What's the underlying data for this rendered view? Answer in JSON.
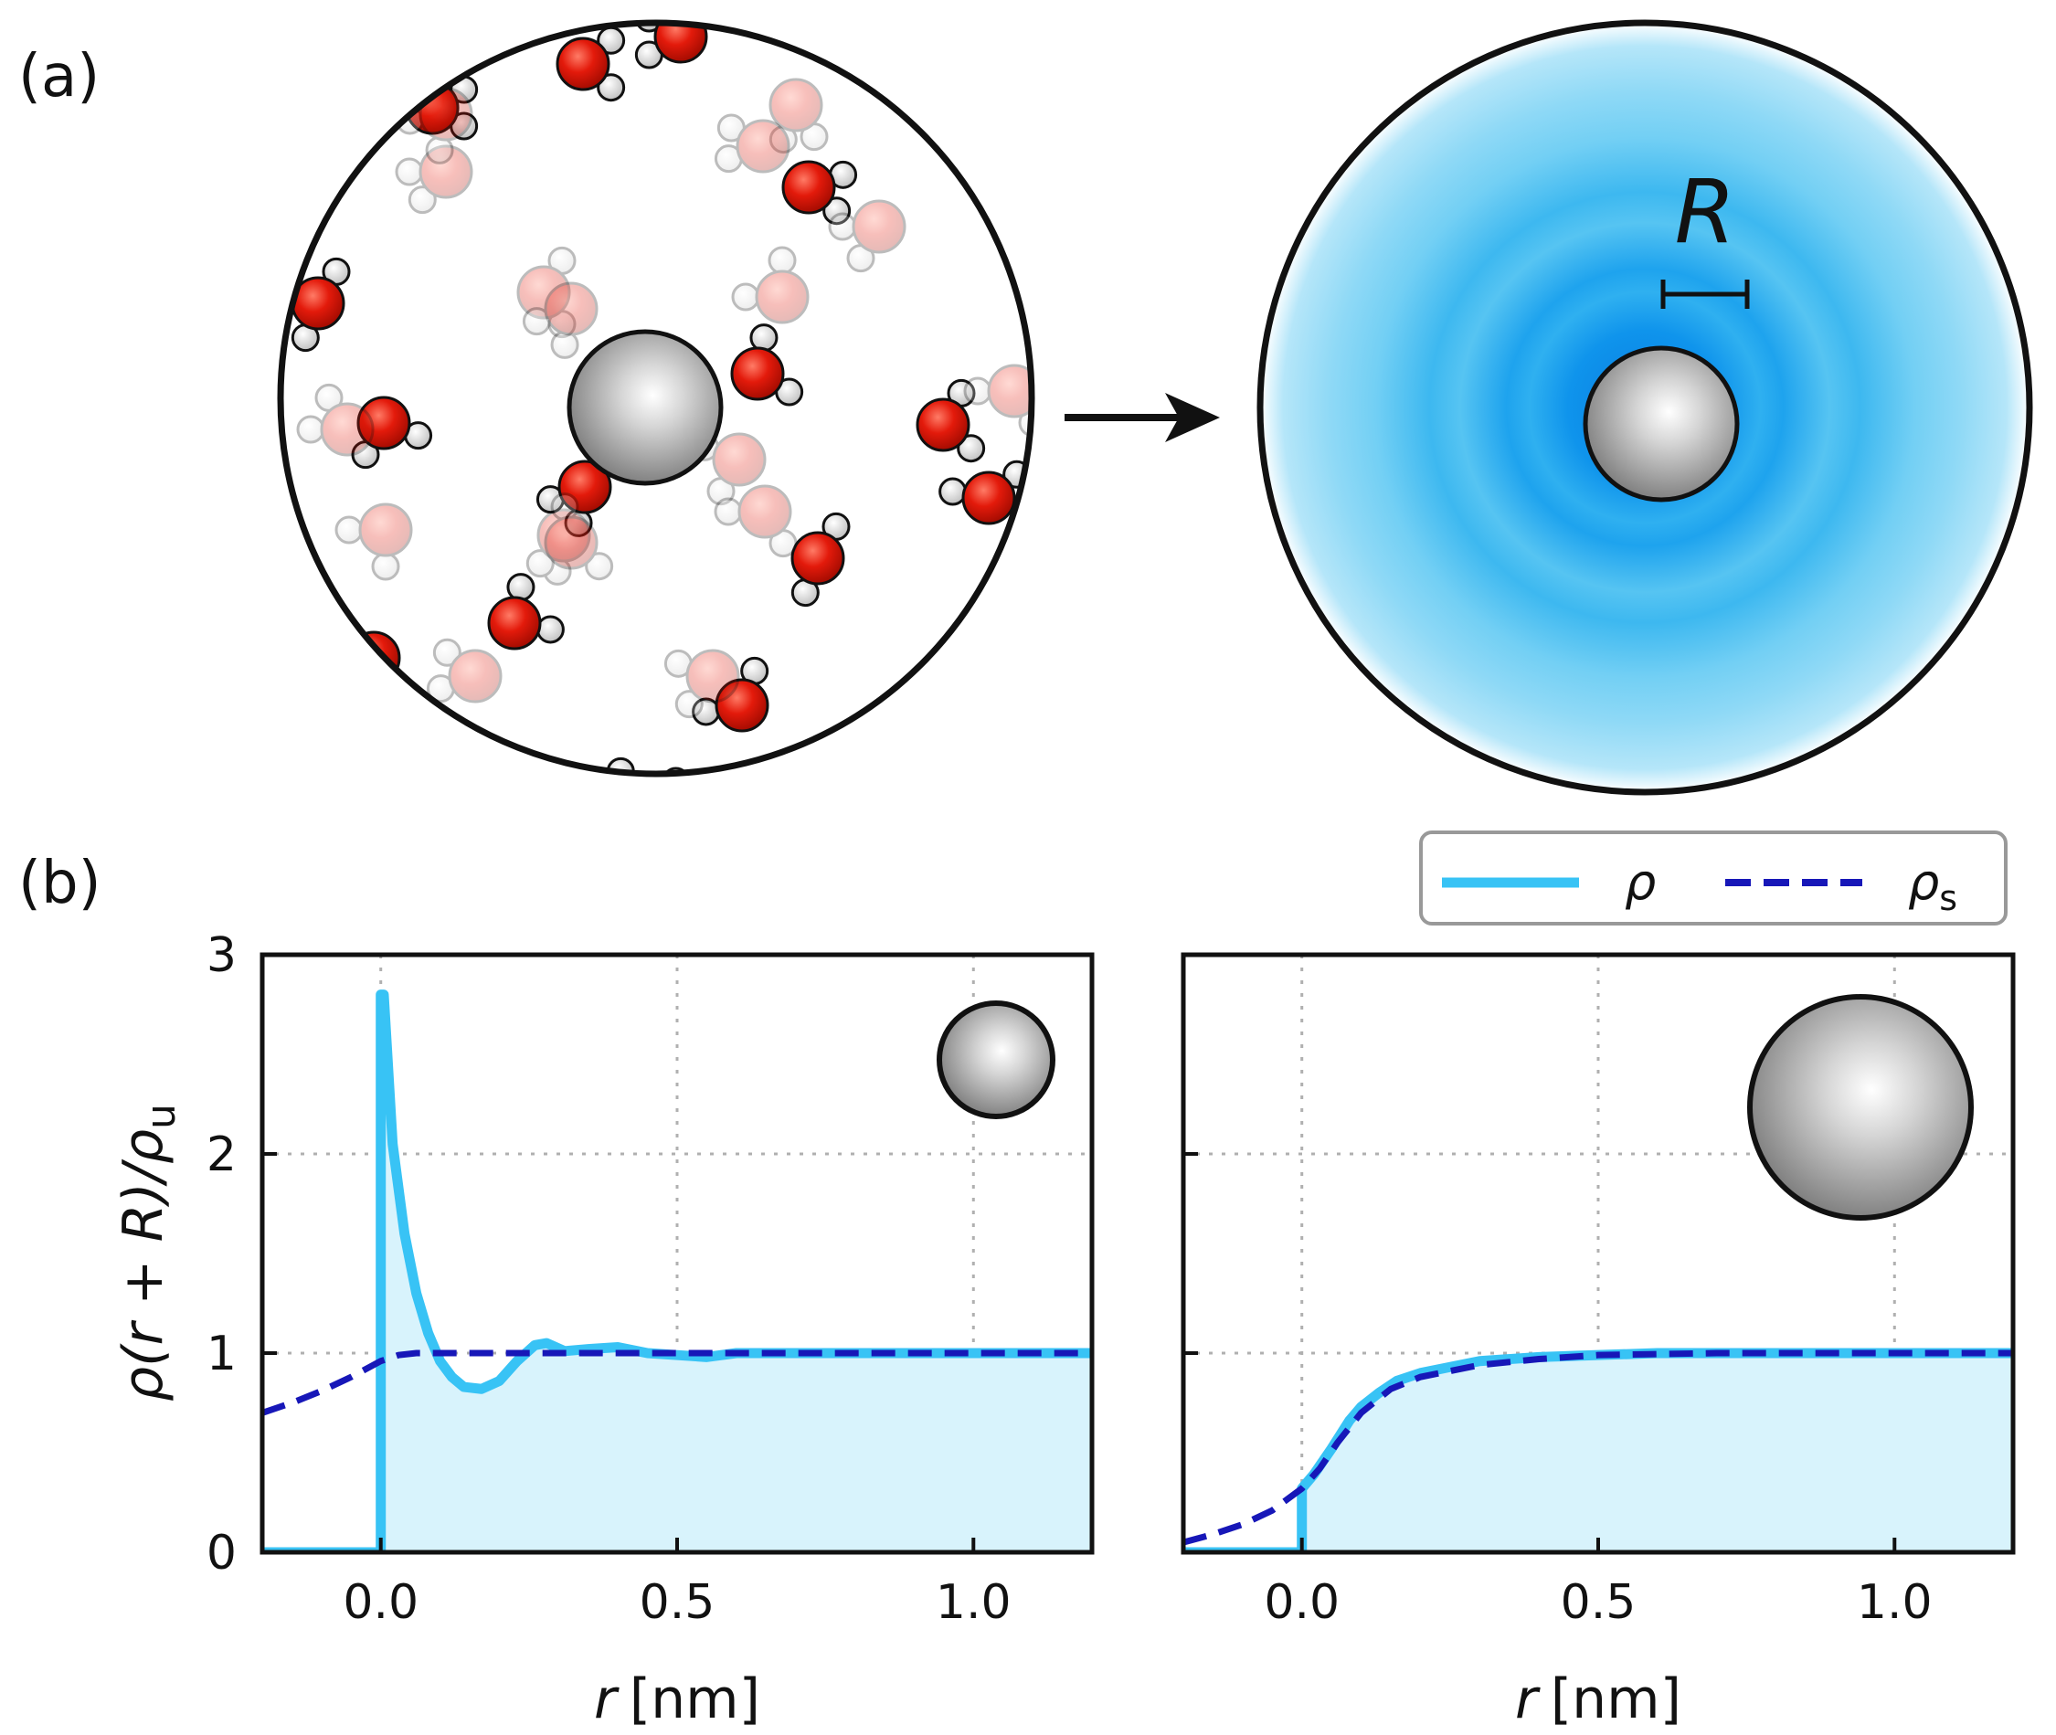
{
  "panel_labels": {
    "a": "(a)",
    "b": "(b)"
  },
  "illustration": {
    "radius_label": "R",
    "colors": {
      "oxygen": "#e31a0b",
      "hydrogen": "#ffffff",
      "solute": "#9a9a9a",
      "density_blue": "#1aa6f0"
    }
  },
  "legend": {
    "entries": [
      {
        "label": "ρ",
        "color": "#38c3f5",
        "style": "solid"
      },
      {
        "label": "ρ",
        "sub": "s",
        "color": "#1717b8",
        "style": "dashed"
      }
    ]
  },
  "axes_text": {
    "ylabel_html": "ρ(r + R)/ρ",
    "ylabel_sub": "u",
    "xlabel_var": "r",
    "xlabel_unit": "[nm]"
  },
  "colors": {
    "rho": "#38c3f5",
    "rho_s": "#1717b8",
    "fill": "#d8f3fc",
    "grid": "#b0b0b0"
  },
  "chart_data": [
    {
      "type": "line",
      "panel": "left (small solute)",
      "xlabel": "r [nm]",
      "ylabel": "ρ(r + R)/ρu",
      "xlim": [
        -0.2,
        1.2
      ],
      "ylim": [
        0,
        3
      ],
      "xticks": [
        0.0,
        0.5,
        1.0
      ],
      "xtick_labels": [
        "0.0",
        "0.5",
        "1.0"
      ],
      "yticks": [
        0,
        1,
        2,
        3
      ],
      "ytick_labels": [
        "0",
        "1",
        "2",
        "3"
      ],
      "grid": true,
      "series": [
        {
          "name": "ρ",
          "x": [
            -0.2,
            0.0,
            0.0,
            0.005,
            0.02,
            0.04,
            0.06,
            0.08,
            0.1,
            0.12,
            0.14,
            0.17,
            0.2,
            0.23,
            0.26,
            0.28,
            0.31,
            0.35,
            0.4,
            0.45,
            0.5,
            0.55,
            0.6,
            0.7,
            0.8,
            0.9,
            1.0,
            1.1,
            1.2
          ],
          "y": [
            0.0,
            0.0,
            2.8,
            2.8,
            2.05,
            1.6,
            1.3,
            1.1,
            0.96,
            0.88,
            0.83,
            0.82,
            0.86,
            0.96,
            1.04,
            1.05,
            1.01,
            1.02,
            1.03,
            1.0,
            0.99,
            0.98,
            1.0,
            1.0,
            1.0,
            1.0,
            1.0,
            1.0,
            1.0
          ]
        },
        {
          "name": "ρs",
          "x": [
            -0.2,
            -0.15,
            -0.1,
            -0.05,
            0.0,
            0.03,
            0.06,
            0.1,
            0.2,
            0.4,
            0.6,
            0.8,
            1.0,
            1.2
          ],
          "y": [
            0.7,
            0.75,
            0.81,
            0.88,
            0.96,
            0.99,
            1.0,
            1.0,
            1.0,
            1.0,
            1.0,
            1.0,
            1.0,
            1.0
          ]
        }
      ]
    },
    {
      "type": "line",
      "panel": "right (large solute)",
      "xlabel": "r [nm]",
      "ylabel": "",
      "xlim": [
        -0.2,
        1.2
      ],
      "ylim": [
        0,
        3
      ],
      "xticks": [
        0.0,
        0.5,
        1.0
      ],
      "xtick_labels": [
        "0.0",
        "0.5",
        "1.0"
      ],
      "yticks": [
        0,
        1,
        2,
        3
      ],
      "ytick_labels": [],
      "grid": true,
      "series": [
        {
          "name": "ρ",
          "x": [
            -0.2,
            0.0,
            0.0,
            0.02,
            0.05,
            0.08,
            0.1,
            0.13,
            0.16,
            0.2,
            0.25,
            0.3,
            0.4,
            0.5,
            0.6,
            0.8,
            1.0,
            1.2
          ],
          "y": [
            0.0,
            0.0,
            0.32,
            0.39,
            0.52,
            0.66,
            0.73,
            0.8,
            0.86,
            0.9,
            0.93,
            0.96,
            0.98,
            0.99,
            1.0,
            1.0,
            1.0,
            1.0
          ]
        },
        {
          "name": "ρs",
          "x": [
            -0.2,
            -0.15,
            -0.1,
            -0.05,
            0.0,
            0.03,
            0.06,
            0.1,
            0.15,
            0.2,
            0.3,
            0.4,
            0.5,
            0.7,
            1.0,
            1.2
          ],
          "y": [
            0.05,
            0.09,
            0.14,
            0.21,
            0.32,
            0.42,
            0.55,
            0.7,
            0.82,
            0.88,
            0.94,
            0.97,
            0.99,
            1.0,
            1.0,
            1.0
          ]
        }
      ]
    }
  ]
}
